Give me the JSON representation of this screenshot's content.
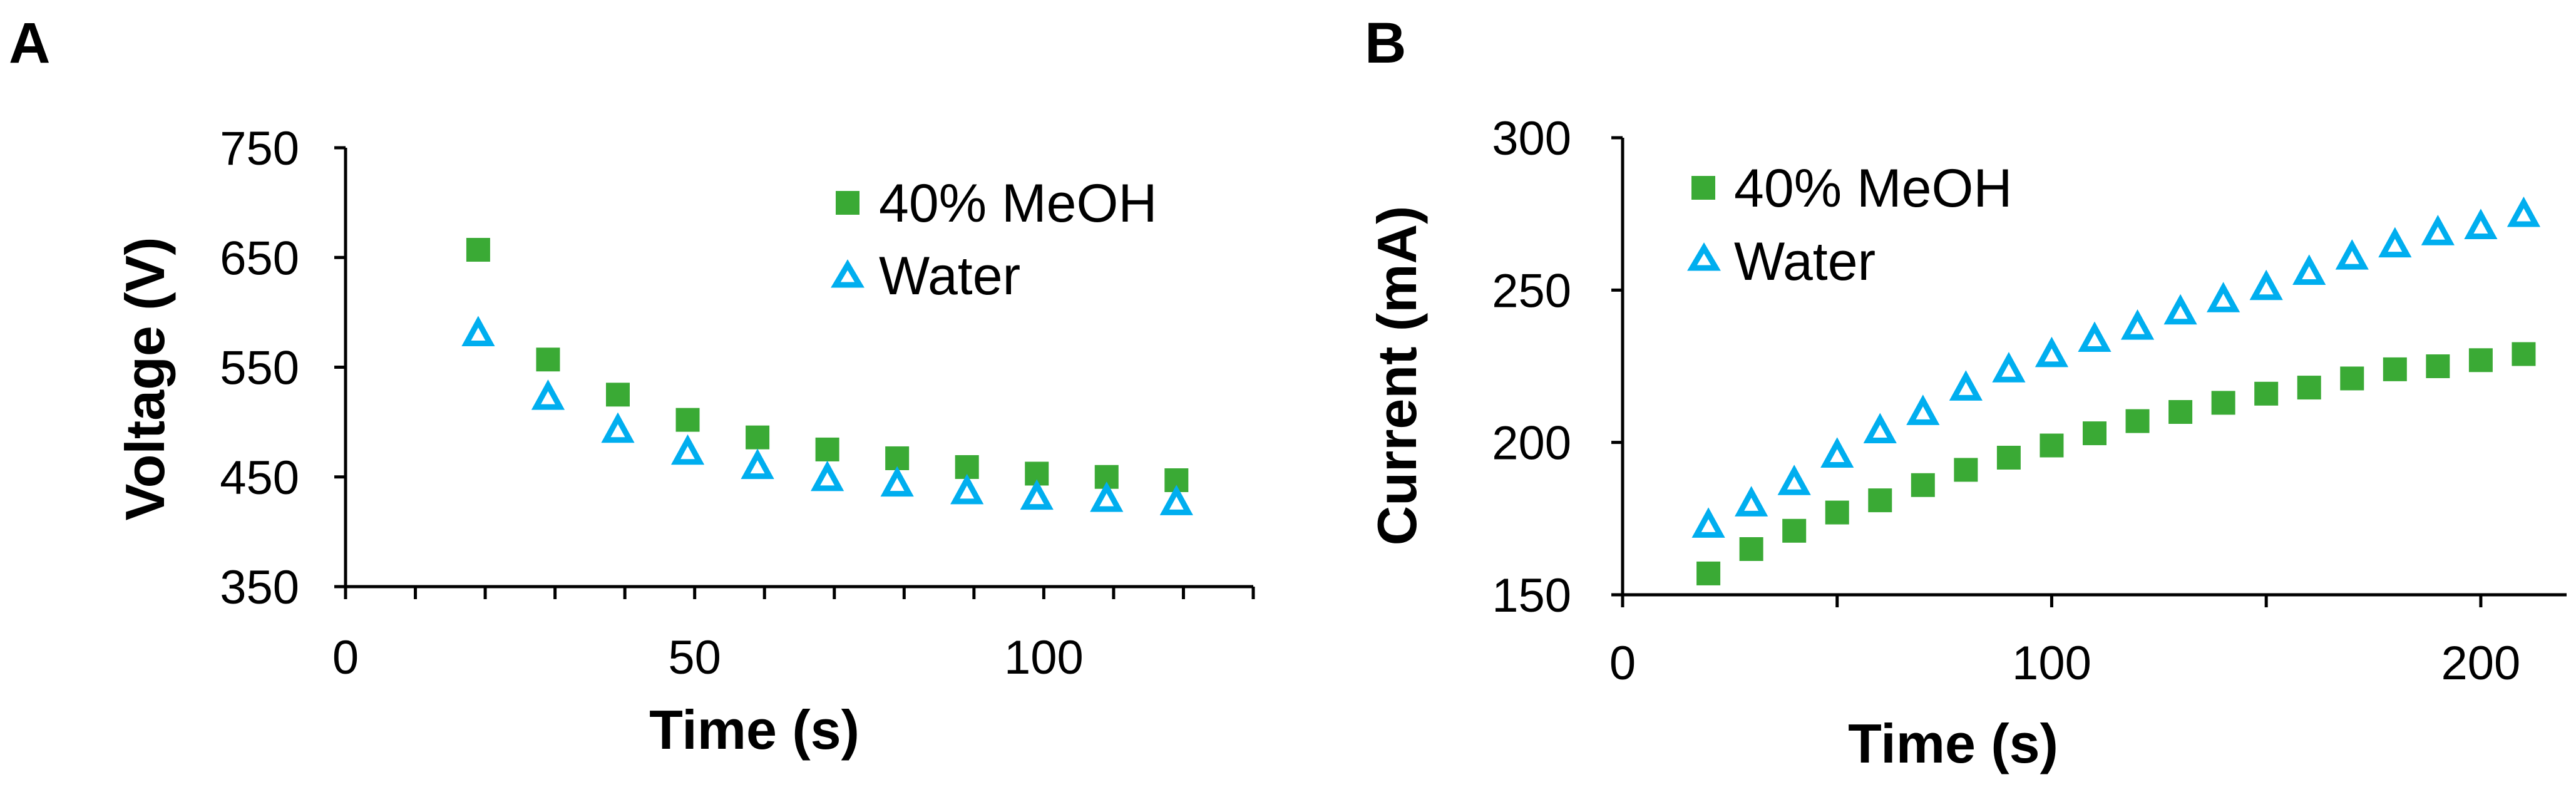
{
  "colors": {
    "meoh": "#3aaa35",
    "water": "#00aeef",
    "axis": "#000000"
  },
  "chart_data": [
    {
      "panel": "A",
      "type": "scatter",
      "xlabel": "Time (s)",
      "ylabel": "Voltage (V)",
      "xlim": [
        0,
        130
      ],
      "ylim": [
        350,
        750
      ],
      "xticks": [
        0,
        50,
        100
      ],
      "xticklabels": [
        "0",
        "50",
        "100"
      ],
      "xminor": [
        10,
        20,
        30,
        40,
        60,
        70,
        80,
        90,
        110,
        120,
        130
      ],
      "yticks": [
        350,
        450,
        550,
        650,
        750
      ],
      "yticklabels": [
        "350",
        "450",
        "550",
        "650",
        "750"
      ],
      "legend": [
        "40% MeOH",
        "Water"
      ],
      "legend_position": "top-right",
      "series": [
        {
          "name": "40% MeOH",
          "marker": "square",
          "x": [
            19,
            29,
            39,
            49,
            59,
            69,
            79,
            89,
            99,
            109,
            119
          ],
          "y": [
            657,
            557,
            525,
            502,
            486,
            475,
            467,
            459,
            453,
            450,
            447
          ]
        },
        {
          "name": "Water",
          "marker": "triangle-open",
          "x": [
            19,
            29,
            39,
            49,
            59,
            69,
            79,
            89,
            99,
            109,
            119
          ],
          "y": [
            581,
            523,
            493,
            473,
            460,
            449,
            444,
            437,
            432,
            430,
            427
          ]
        }
      ]
    },
    {
      "panel": "B",
      "type": "scatter",
      "xlabel": "Time (s)",
      "ylabel": "Current (mA)",
      "xlim": [
        0,
        220
      ],
      "ylim": [
        150,
        300
      ],
      "xticks": [
        0,
        100,
        200
      ],
      "xticklabels": [
        "0",
        "100",
        "200"
      ],
      "xminor": [
        50,
        150
      ],
      "yticks": [
        150,
        200,
        250,
        300
      ],
      "yticklabels": [
        "150",
        "200",
        "250",
        "300"
      ],
      "legend": [
        "40% MeOH",
        "Water"
      ],
      "legend_position": "top-left",
      "series": [
        {
          "name": "40% MeOH",
          "marker": "square",
          "x": [
            20,
            30,
            40,
            50,
            60,
            70,
            80,
            90,
            100,
            110,
            120,
            130,
            140,
            150,
            160,
            170,
            180,
            190,
            200,
            210
          ],
          "y": [
            157,
            165,
            171,
            177,
            181,
            186,
            191,
            195,
            199,
            203,
            207,
            210,
            213,
            216,
            218,
            221,
            224,
            225,
            227,
            229
          ]
        },
        {
          "name": "Water",
          "marker": "triangle-open",
          "x": [
            20,
            30,
            40,
            50,
            60,
            70,
            80,
            90,
            100,
            110,
            120,
            130,
            140,
            150,
            160,
            170,
            180,
            190,
            200,
            210
          ],
          "y": [
            173,
            180,
            187,
            196,
            204,
            210,
            218,
            224,
            229,
            234,
            238,
            243,
            247,
            251,
            256,
            261,
            265,
            269,
            271,
            275
          ]
        }
      ]
    }
  ]
}
